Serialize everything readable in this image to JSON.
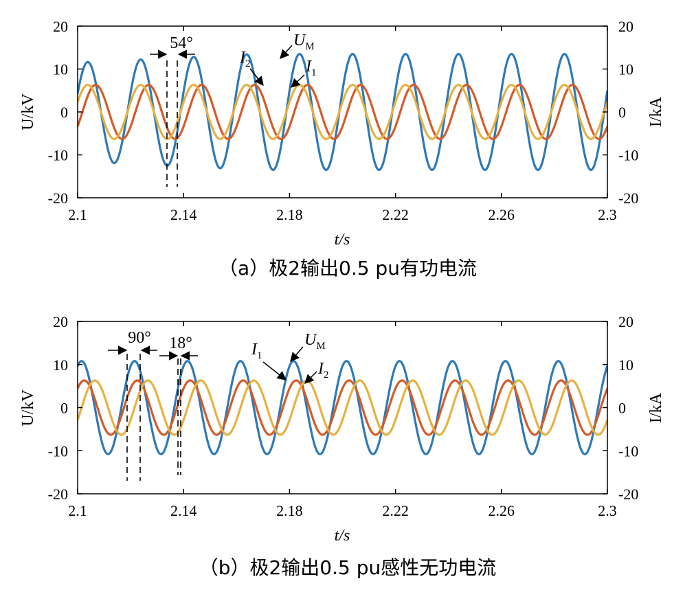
{
  "chart_data": [
    {
      "type": "line",
      "caption": "（a）极2输出0.5 pu有功电流",
      "xlabel": "t/s",
      "ylabel_left": "U/kV",
      "ylabel_right": "I/kA",
      "xlim": [
        2.1,
        2.3
      ],
      "ylim_left": [
        -20,
        20
      ],
      "ylim_right": [
        -20,
        20
      ],
      "xticks": [
        "2.1",
        "2.14",
        "2.18",
        "2.22",
        "2.26",
        "2.3"
      ],
      "xtick_values": [
        2.1,
        2.14,
        2.18,
        2.22,
        2.26,
        2.3
      ],
      "yticks_left": [
        "20",
        "10",
        "0",
        "-10",
        "-20"
      ],
      "yticks_right": [
        "20",
        "10",
        "0",
        "-10",
        "-20"
      ],
      "ytick_values": [
        20,
        10,
        0,
        -10,
        -20
      ],
      "grid": false,
      "series": [
        {
          "name": "U_M",
          "color": "#2f79b5",
          "amplitude": 11.5,
          "amplitude_end": 13.5,
          "frequency_hz": 50,
          "phase_deg": 21.6,
          "axis": "left"
        },
        {
          "name": "I_1",
          "color": "#d45b2a",
          "amplitude": 6.3,
          "frequency_hz": 50,
          "phase_deg": -32.4,
          "axis": "right"
        },
        {
          "name": "I_2",
          "color": "#e6b143",
          "amplitude": 6.3,
          "frequency_hz": 50,
          "phase_deg": 21.6,
          "axis": "right"
        }
      ],
      "annotations": [
        {
          "text": "54°",
          "type": "phase-difference"
        },
        {
          "label": "U",
          "sub": "M"
        },
        {
          "label": "I",
          "sub": "1"
        },
        {
          "label": "I",
          "sub": "2"
        }
      ]
    },
    {
      "type": "line",
      "caption": "（b）极2输出0.5 pu感性无功电流",
      "xlabel": "t/s",
      "ylabel_left": "U/kV",
      "ylabel_right": "I/kA",
      "xlim": [
        2.1,
        2.3
      ],
      "ylim_left": [
        -20,
        20
      ],
      "ylim_right": [
        -20,
        20
      ],
      "xticks": [
        "2.1",
        "2.14",
        "2.18",
        "2.22",
        "2.26",
        "2.3"
      ],
      "xtick_values": [
        2.1,
        2.14,
        2.18,
        2.22,
        2.26,
        2.3
      ],
      "yticks_left": [
        "20",
        "10",
        "0",
        "-10",
        "-20"
      ],
      "yticks_right": [
        "20",
        "10",
        "0",
        "-10",
        "-20"
      ],
      "ytick_values": [
        20,
        10,
        0,
        -10,
        -20
      ],
      "grid": false,
      "series": [
        {
          "name": "U_M",
          "color": "#2f79b5",
          "amplitude": 10.8,
          "frequency_hz": 50,
          "phase_deg": 63,
          "axis": "left"
        },
        {
          "name": "I_1",
          "color": "#d45b2a",
          "amplitude": 6.3,
          "frequency_hz": 50,
          "phase_deg": 45,
          "axis": "right"
        },
        {
          "name": "I_2",
          "color": "#e6b143",
          "amplitude": 6.3,
          "frequency_hz": 50,
          "phase_deg": -27,
          "axis": "right"
        }
      ],
      "annotations": [
        {
          "text": "90°",
          "type": "phase-difference"
        },
        {
          "text": "18°",
          "type": "phase-difference"
        },
        {
          "label": "U",
          "sub": "M"
        },
        {
          "label": "I",
          "sub": "1"
        },
        {
          "label": "I",
          "sub": "2"
        }
      ]
    }
  ]
}
